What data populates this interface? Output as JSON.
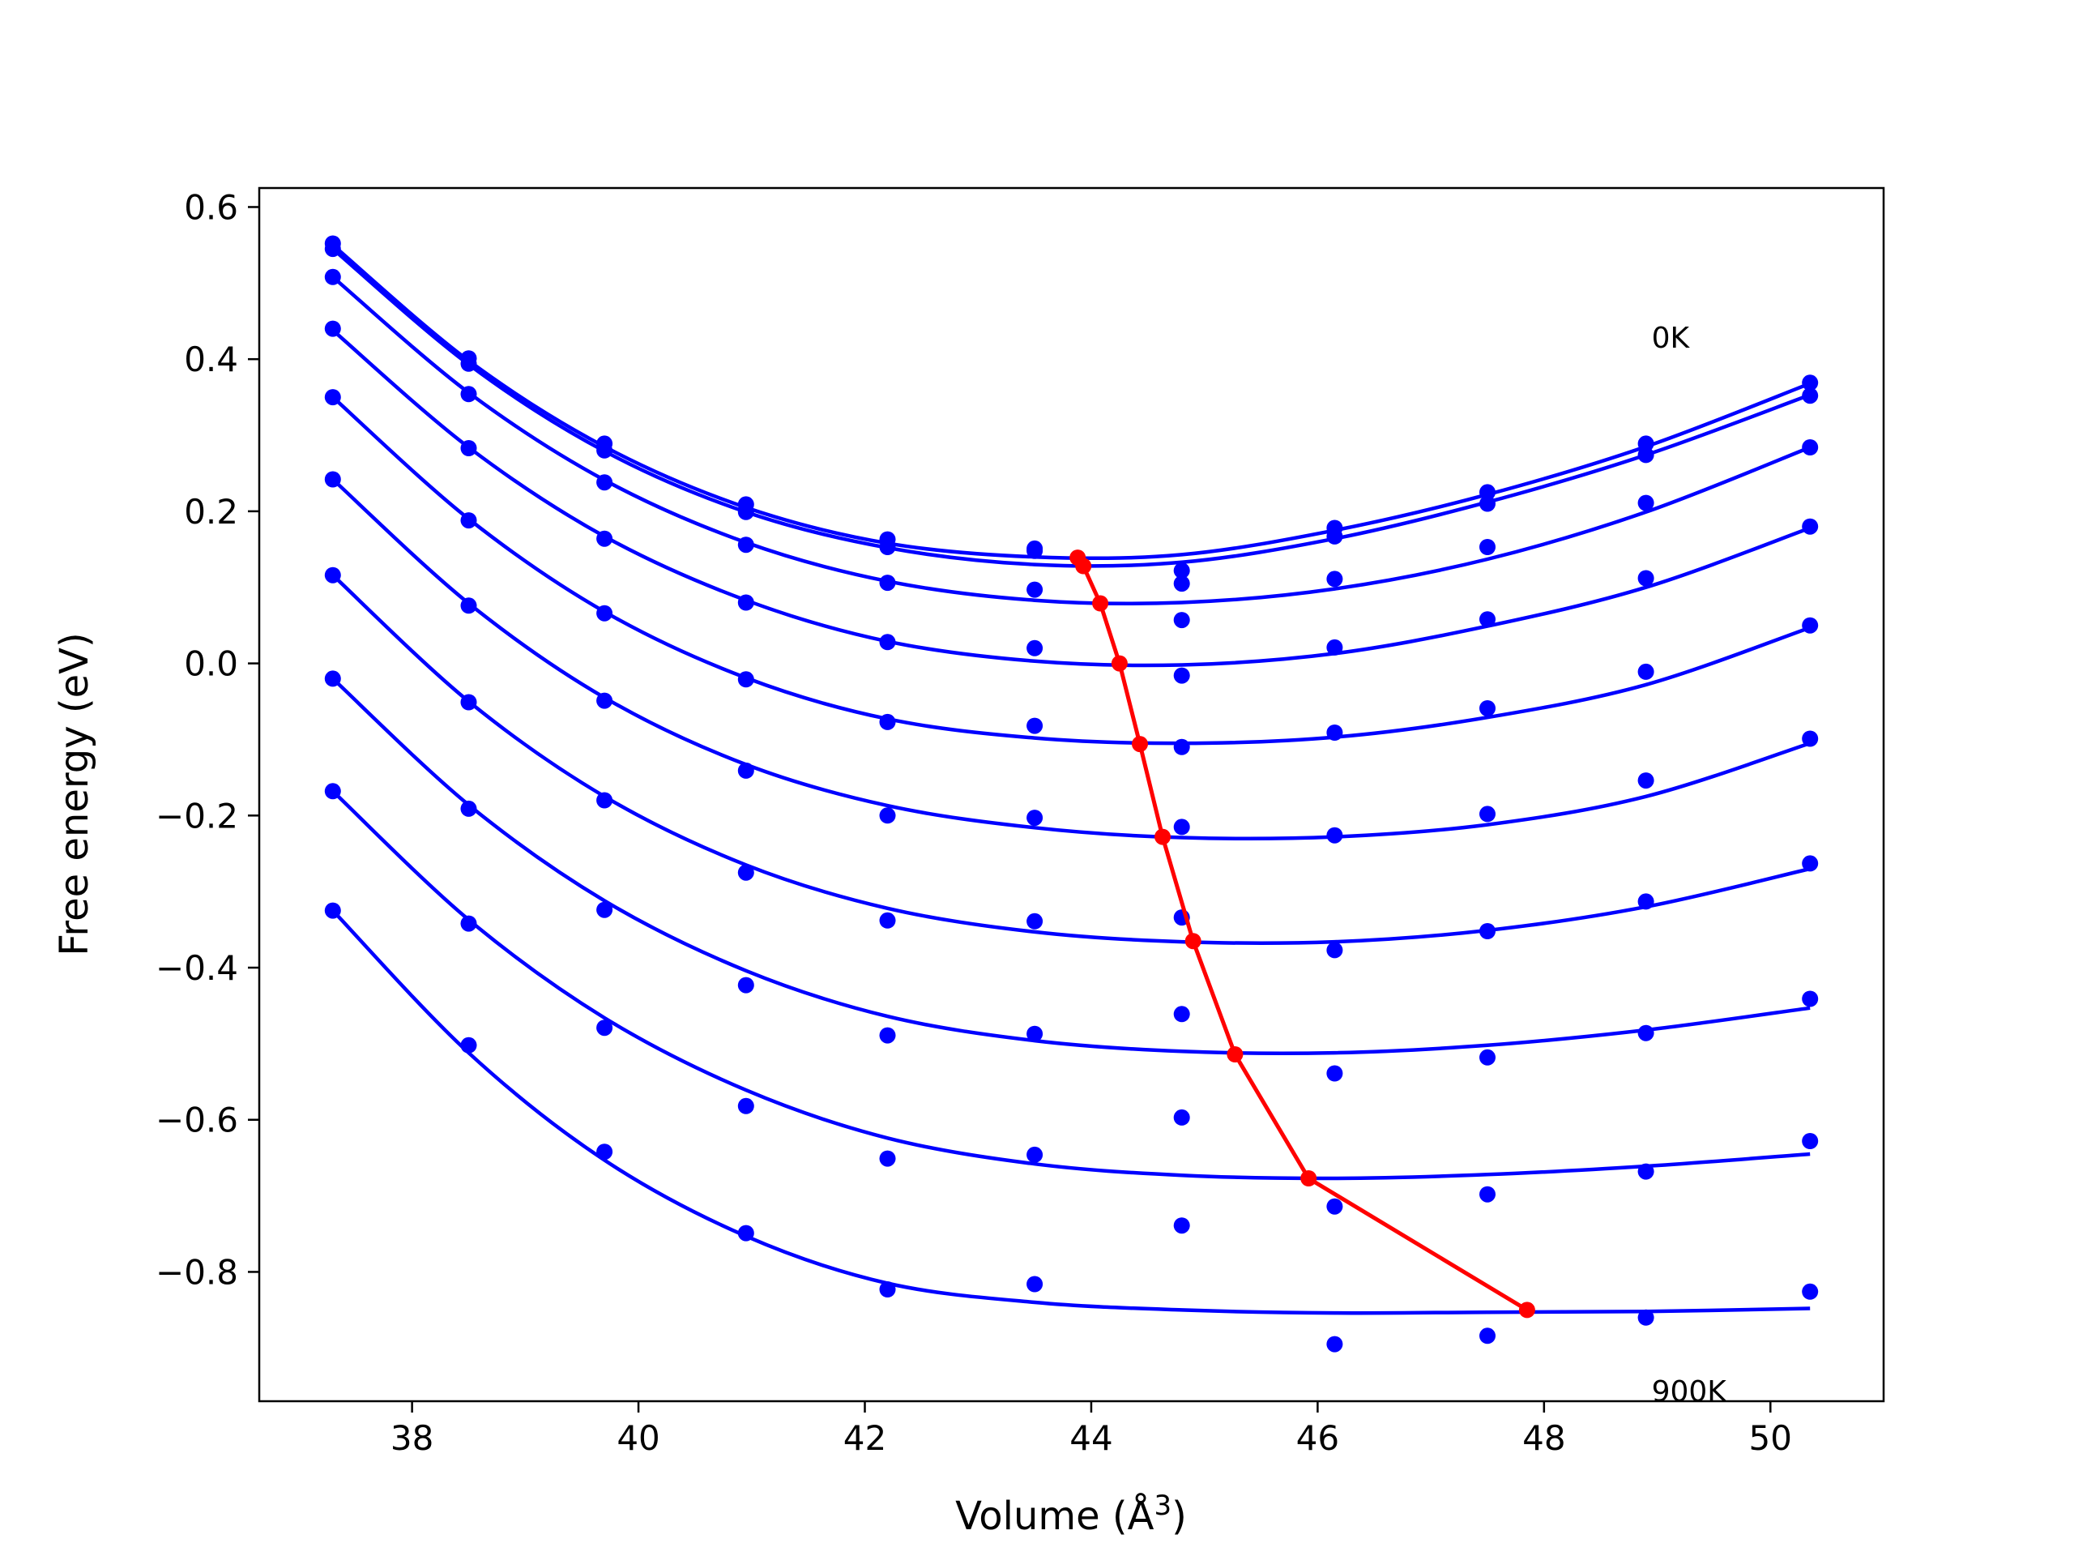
{
  "chart_data": {
    "type": "scatter",
    "title": "",
    "xlabel": "Volume (Å",
    "xlabel_sup": "3",
    "xlabel_close": ")",
    "ylabel": "Free energy (eV)",
    "xlim": [
      36.65,
      51.0
    ],
    "ylim": [
      -0.97,
      0.625
    ],
    "xticks": [
      38,
      40,
      42,
      44,
      46,
      48,
      50
    ],
    "xtick_labels": [
      "38",
      "40",
      "42",
      "44",
      "46",
      "48",
      "50"
    ],
    "yticks": [
      -0.8,
      -0.6,
      -0.4,
      -0.2,
      0.0,
      0.2,
      0.4,
      0.6
    ],
    "ytick_labels": [
      "−0.8",
      "−0.6",
      "−0.4",
      "−0.2",
      "0.0",
      "0.2",
      "0.4",
      "0.6"
    ],
    "annotations": [
      {
        "text": "0K",
        "x": 48.95,
        "y": 0.43
      },
      {
        "text": "900K",
        "x": 48.95,
        "y": -0.955
      }
    ],
    "grid": false,
    "curve_color": "#0000ff",
    "min_line_color": "#ff0000",
    "x": [
      37.3,
      38.5,
      39.7,
      40.95,
      42.2,
      43.5,
      44.8,
      46.15,
      47.5,
      48.9,
      50.35
    ],
    "series": [
      {
        "values": [
          0.552,
          0.401,
          0.289,
          0.209,
          0.163,
          0.151,
          0.122,
          0.178,
          0.225,
          0.289,
          0.369
        ],
        "fit": [
          0.55,
          0.398,
          0.285,
          0.205,
          0.158,
          0.14,
          0.143,
          0.175,
          0.222,
          0.285,
          0.368
        ]
      },
      {
        "values": [
          0.545,
          0.394,
          0.28,
          0.199,
          0.153,
          0.148,
          0.105,
          0.167,
          0.21,
          0.274,
          0.352
        ],
        "fit": [
          0.545,
          0.393,
          0.279,
          0.199,
          0.152,
          0.13,
          0.133,
          0.164,
          0.212,
          0.274,
          0.353
        ]
      },
      {
        "values": [
          0.508,
          0.354,
          0.238,
          0.156,
          0.106,
          0.097,
          0.057,
          0.111,
          0.153,
          0.211,
          0.284
        ],
        "fit": [
          0.508,
          0.356,
          0.241,
          0.159,
          0.108,
          0.083,
          0.08,
          0.098,
          0.137,
          0.199,
          0.284
        ]
      },
      {
        "values": [
          0.44,
          0.283,
          0.164,
          0.08,
          0.028,
          0.02,
          -0.016,
          0.021,
          0.058,
          0.112,
          0.18
        ],
        "fit": [
          0.438,
          0.284,
          0.167,
          0.083,
          0.029,
          0.003,
          -0.002,
          0.013,
          0.049,
          0.1,
          0.178
        ]
      },
      {
        "values": [
          0.35,
          0.188,
          0.066,
          -0.021,
          -0.077,
          -0.082,
          -0.11,
          -0.091,
          -0.059,
          -0.011,
          0.05
        ],
        "fit": [
          0.35,
          0.19,
          0.068,
          -0.019,
          -0.073,
          -0.098,
          -0.105,
          -0.097,
          -0.071,
          -0.028,
          0.047
        ]
      },
      {
        "values": [
          0.242,
          0.076,
          -0.049,
          -0.141,
          -0.2,
          -0.203,
          -0.215,
          -0.226,
          -0.198,
          -0.154,
          -0.099
        ],
        "fit": [
          0.242,
          0.079,
          -0.045,
          -0.133,
          -0.187,
          -0.216,
          -0.229,
          -0.228,
          -0.212,
          -0.175,
          -0.105
        ]
      },
      {
        "values": [
          0.116,
          -0.051,
          -0.18,
          -0.275,
          -0.338,
          -0.339,
          -0.334,
          -0.377,
          -0.352,
          -0.313,
          -0.263
        ],
        "fit": [
          0.116,
          -0.05,
          -0.175,
          -0.265,
          -0.322,
          -0.353,
          -0.366,
          -0.366,
          -0.351,
          -0.32,
          -0.27
        ]
      },
      {
        "values": [
          -0.02,
          -0.191,
          -0.324,
          -0.423,
          -0.489,
          -0.487,
          -0.461,
          -0.539,
          -0.518,
          -0.486,
          -0.441
        ],
        "fit": [
          -0.02,
          -0.186,
          -0.312,
          -0.404,
          -0.464,
          -0.496,
          -0.51,
          -0.512,
          -0.502,
          -0.482,
          -0.453
        ]
      },
      {
        "values": [
          -0.168,
          -0.342,
          -0.479,
          -0.582,
          -0.651,
          -0.646,
          -0.597,
          -0.714,
          -0.698,
          -0.668,
          -0.628
        ],
        "fit": [
          -0.168,
          -0.337,
          -0.466,
          -0.561,
          -0.624,
          -0.658,
          -0.673,
          -0.677,
          -0.672,
          -0.661,
          -0.645
        ]
      },
      {
        "values": [
          -0.325,
          -0.502,
          -0.642,
          -0.749,
          -0.823,
          -0.816,
          -0.739,
          -0.895,
          -0.884,
          -0.86,
          -0.826
        ],
        "fit": [
          -0.325,
          -0.512,
          -0.653,
          -0.753,
          -0.815,
          -0.84,
          -0.85,
          -0.854,
          -0.853,
          -0.852,
          -0.848
        ]
      }
    ],
    "min_line": {
      "x": [
        43.88,
        43.93,
        44.08,
        44.25,
        44.43,
        44.63,
        44.9,
        45.27,
        45.92,
        47.85
      ],
      "y": [
        0.139,
        0.128,
        0.079,
        0.0,
        -0.106,
        -0.228,
        -0.365,
        -0.514,
        -0.677,
        -0.85
      ]
    }
  }
}
